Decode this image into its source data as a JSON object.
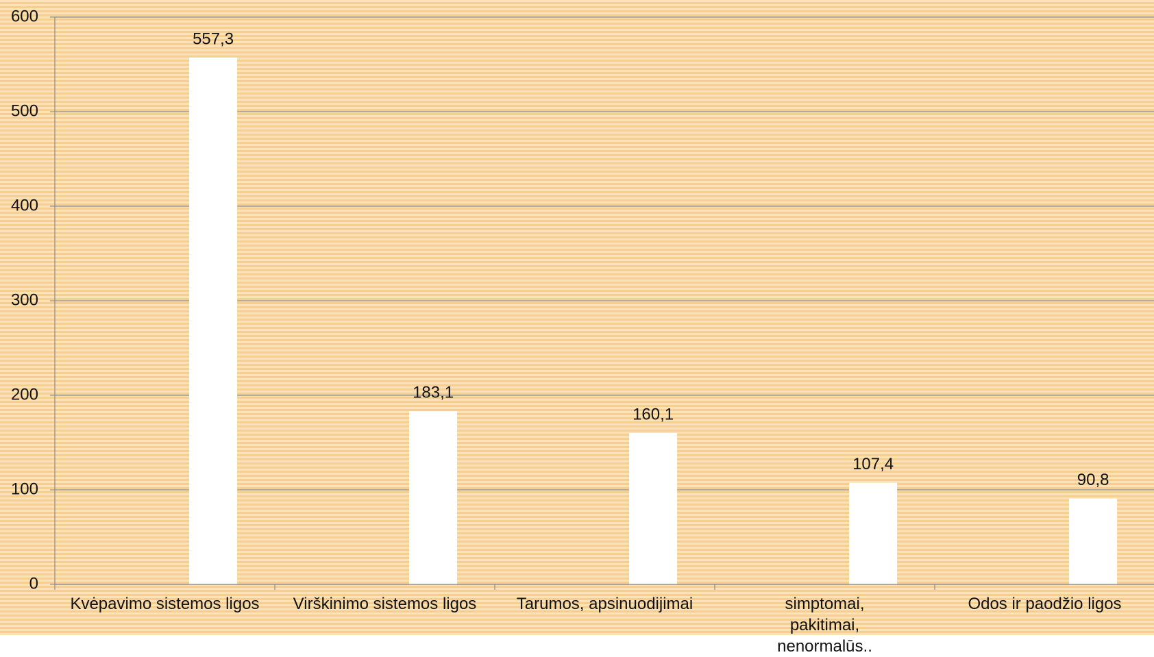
{
  "chart_data": {
    "type": "bar",
    "categories": [
      "Kvėpavimo sistemos ligos",
      "Virškinimo sistemos ligos",
      "Tarumos, apsinuodijimai",
      "simptomai, pakitimai, nenormalūs..",
      "Odos ir paodžio ligos"
    ],
    "values": [
      557.3,
      183.1,
      160.1,
      107.4,
      90.8
    ],
    "value_labels": [
      "557,3",
      "183,1",
      "160,1",
      "107,4",
      "90,8"
    ],
    "color": "#ffffff",
    "ylim": [
      0,
      600
    ],
    "yticks": [
      0,
      100,
      200,
      300,
      400,
      500,
      600
    ],
    "grid": true
  }
}
